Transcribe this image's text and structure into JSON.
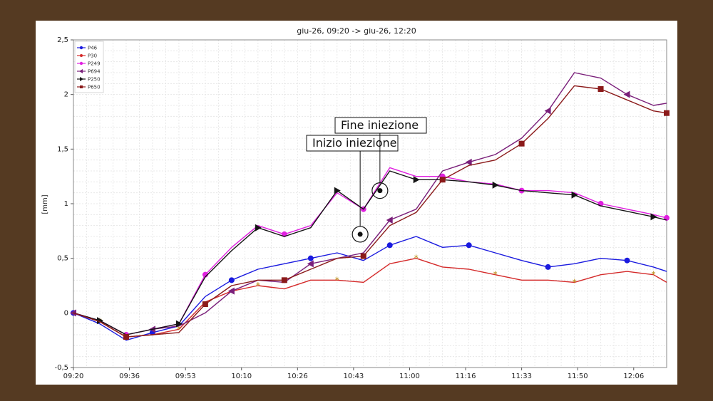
{
  "chart_data": {
    "type": "line",
    "title": "giu-26, 09:20 -> giu-26, 12:20",
    "ylabel": "[mm]",
    "xlabel": "",
    "ylim": [
      -0.5,
      2.5
    ],
    "grid": true,
    "legend_placement": "top-left",
    "x_ticks": [
      "09:20",
      "09:36",
      "09:53",
      "10:10",
      "10:26",
      "10:43",
      "11:00",
      "11:16",
      "11:33",
      "11:50",
      "12:06"
    ],
    "y_ticks": [
      "-0,5",
      "0",
      "0,5",
      "1",
      "1,5",
      "2",
      "2,5"
    ],
    "x_minutes": [
      0,
      8,
      16,
      24,
      32,
      40,
      48,
      56,
      64,
      72,
      80,
      88,
      96,
      104,
      112,
      120,
      128,
      136,
      144,
      152,
      160,
      168,
      176,
      180
    ],
    "series": [
      {
        "name": "P46",
        "color": "#1a1adf",
        "marker": "circle",
        "values": [
          0,
          -0.1,
          -0.25,
          -0.18,
          -0.12,
          0.15,
          0.3,
          0.4,
          0.45,
          0.5,
          0.55,
          0.48,
          0.62,
          0.7,
          0.6,
          0.62,
          0.55,
          0.48,
          0.42,
          0.45,
          0.5,
          0.48,
          0.42,
          0.38
        ]
      },
      {
        "name": "P30",
        "color": "#d42a2a",
        "marker": "star",
        "values": [
          0,
          -0.08,
          -0.22,
          -0.2,
          -0.15,
          0.1,
          0.2,
          0.25,
          0.22,
          0.3,
          0.3,
          0.28,
          0.45,
          0.5,
          0.42,
          0.4,
          0.35,
          0.3,
          0.3,
          0.28,
          0.35,
          0.38,
          0.35,
          0.28
        ]
      },
      {
        "name": "P249",
        "color": "#e020e0",
        "marker": "circle",
        "values": [
          0,
          -0.07,
          -0.2,
          -0.15,
          -0.1,
          0.35,
          0.6,
          0.8,
          0.72,
          0.8,
          1.1,
          0.95,
          1.33,
          1.25,
          1.25,
          1.2,
          1.18,
          1.12,
          1.12,
          1.1,
          1.0,
          0.95,
          0.9,
          0.87
        ]
      },
      {
        "name": "P694",
        "color": "#7a1f7a",
        "marker": "triangle-left",
        "values": [
          0,
          -0.07,
          -0.2,
          -0.15,
          -0.12,
          0.0,
          0.2,
          0.3,
          0.28,
          0.45,
          0.5,
          0.55,
          0.85,
          0.95,
          1.3,
          1.38,
          1.45,
          1.6,
          1.85,
          2.2,
          2.15,
          2.0,
          1.9,
          1.92
        ]
      },
      {
        "name": "P250",
        "color": "#151515",
        "marker": "triangle-right",
        "values": [
          0,
          -0.07,
          -0.2,
          -0.15,
          -0.1,
          0.33,
          0.57,
          0.78,
          0.7,
          0.78,
          1.12,
          0.95,
          1.3,
          1.22,
          1.22,
          1.2,
          1.17,
          1.12,
          1.1,
          1.08,
          0.98,
          0.93,
          0.88,
          0.85
        ]
      },
      {
        "name": "P650",
        "color": "#8b1a1a",
        "marker": "square",
        "values": [
          0,
          -0.08,
          -0.22,
          -0.2,
          -0.18,
          0.08,
          0.25,
          0.3,
          0.3,
          0.4,
          0.5,
          0.52,
          0.8,
          0.92,
          1.22,
          1.35,
          1.4,
          1.55,
          1.78,
          2.08,
          2.05,
          1.95,
          1.85,
          1.83
        ]
      }
    ],
    "annotations": [
      {
        "label": "Inizio iniezione",
        "x_minutes": 87,
        "y": 0.72
      },
      {
        "label": "Fine iniezione",
        "x_minutes": 93,
        "y": 1.12
      }
    ]
  }
}
